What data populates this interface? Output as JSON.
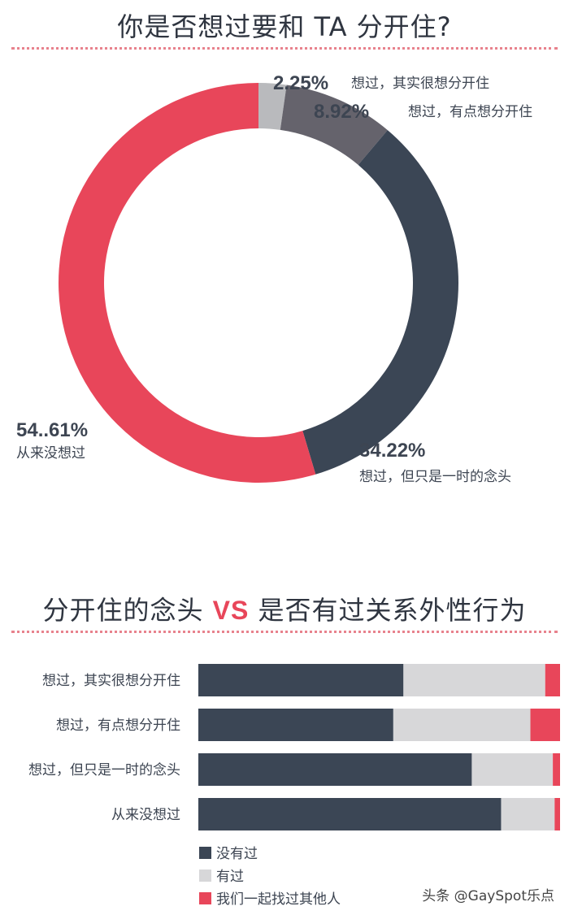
{
  "donut_chart": {
    "title": "你是否想过要和 TA 分开住?",
    "chart_data": {
      "type": "pie",
      "variant": "donut",
      "slices": [
        {
          "label": "想过，其实很想分开住",
          "pct_text": "2.25%",
          "value": 2.25,
          "color": "#b9babd"
        },
        {
          "label": "想过，有点想分开住",
          "pct_text": "8.92%",
          "value": 8.92,
          "color": "#65636c"
        },
        {
          "label": "想过，但只是一时的念头",
          "pct_text": "34.22%",
          "value": 34.22,
          "color": "#3b4655"
        },
        {
          "label": "从来没想过",
          "pct_text": "54..61%",
          "value": 54.61,
          "color": "#e8465a"
        }
      ]
    }
  },
  "bar_chart": {
    "title_part1": "分开住的念头",
    "title_vs": "VS",
    "title_part2": "是否有过关系外性行为",
    "chart_data": {
      "type": "bar",
      "orientation": "horizontal",
      "stacked": true,
      "percent_stacked": true,
      "categories": [
        "想过，其实很想分开住",
        "想过，有点想分开住",
        "想过，但只是一时的念头",
        "从来没想过"
      ],
      "series": [
        {
          "name": "没有过",
          "color": "#3b4655",
          "values": [
            56.7,
            53.9,
            75.6,
            83.7
          ]
        },
        {
          "name": "有过",
          "color": "#d7d7d9",
          "values": [
            39.2,
            37.9,
            22.4,
            14.8
          ]
        },
        {
          "name": "我们一起找过其他人",
          "color": "#e8465a",
          "values": [
            4.1,
            8.2,
            2.0,
            1.5
          ]
        }
      ],
      "legend_position": "bottom-left"
    }
  },
  "watermark": "头条 @GaySpot乐点"
}
